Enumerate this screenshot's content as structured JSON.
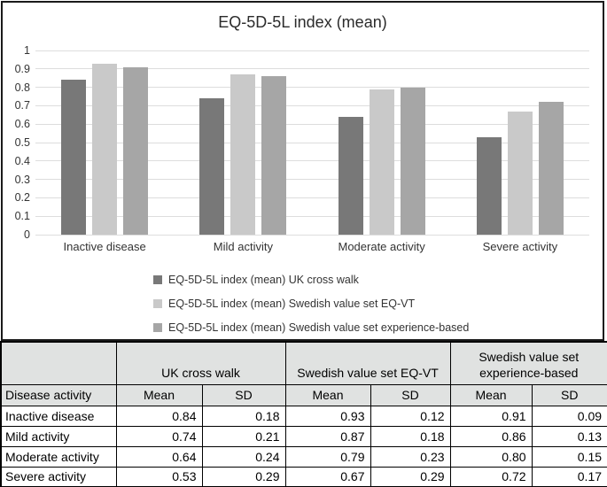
{
  "chart_data": {
    "type": "bar",
    "title": "EQ-5D-5L index (mean)",
    "categories": [
      "Inactive disease",
      "Mild activity",
      "Moderate activity",
      "Severe activity"
    ],
    "series": [
      {
        "name": "EQ-5D-5L index (mean) UK cross walk",
        "color": "#787878",
        "values": [
          0.84,
          0.74,
          0.64,
          0.53
        ]
      },
      {
        "name": "EQ-5D-5L index (mean) Swedish value set EQ-VT",
        "color": "#c9c9c9",
        "values": [
          0.93,
          0.87,
          0.79,
          0.67
        ]
      },
      {
        "name": "EQ-5D-5L index (mean) Swedish value set experience-based",
        "color": "#a6a6a6",
        "values": [
          0.91,
          0.86,
          0.8,
          0.72
        ]
      }
    ],
    "xlabel": "",
    "ylabel": "",
    "ylim": [
      0,
      1
    ],
    "ytick_labels": [
      "1",
      "0.9",
      "0.8",
      "0.7",
      "0.6",
      "0.5",
      "0.4",
      "0.3",
      "0.2",
      "0.1",
      "0"
    ],
    "grid": true,
    "legend_position": "bottom-left"
  },
  "table": {
    "group_headers": [
      {
        "label": "",
        "span": 1
      },
      {
        "label": "UK cross walk",
        "span": 2
      },
      {
        "label": "Swedish value set EQ-VT",
        "span": 2
      },
      {
        "label": "Swedish value set experience-based",
        "span": 2
      }
    ],
    "column_headers": [
      "Disease activity",
      "Mean",
      "SD",
      "Mean",
      "SD",
      "Mean",
      "SD"
    ],
    "rows": [
      {
        "label": "Inactive disease",
        "values": [
          "0.84",
          "0.18",
          "0.93",
          "0.12",
          "0.91",
          "0.09"
        ]
      },
      {
        "label": "Mild activity",
        "values": [
          "0.74",
          "0.21",
          "0.87",
          "0.18",
          "0.86",
          "0.13"
        ]
      },
      {
        "label": "Moderate activity",
        "values": [
          "0.64",
          "0.24",
          "0.79",
          "0.23",
          "0.80",
          "0.15"
        ]
      },
      {
        "label": "Severe activity",
        "values": [
          "0.53",
          "0.29",
          "0.67",
          "0.29",
          "0.72",
          "0.17"
        ]
      }
    ]
  },
  "colors": {
    "bar_dark": "#787878",
    "bar_light": "#c9c9c9",
    "bar_medium": "#a6a6a6",
    "gridline": "#dddddd",
    "table_header_bg": "#e0e2e1",
    "border": "#000000"
  }
}
